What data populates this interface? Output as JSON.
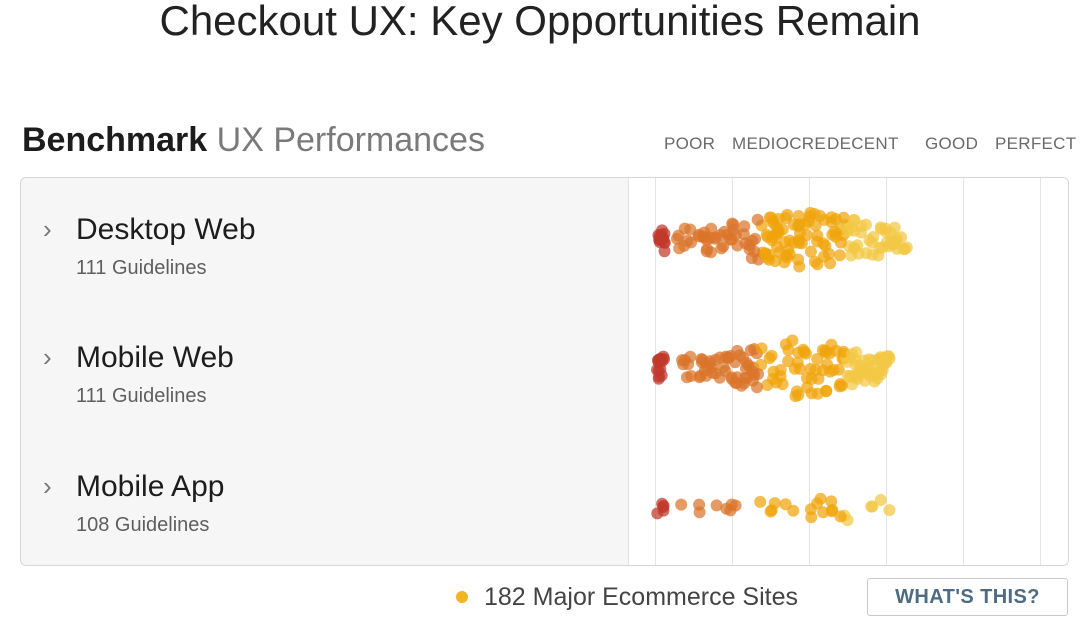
{
  "page_title": "Checkout UX: Key Opportunities Remain",
  "section": {
    "title_strong": "Benchmark",
    "title_light": "UX Performances"
  },
  "scale": [
    "POOR",
    "MEDIOCRE",
    "DECENT",
    "GOOD",
    "PERFECT"
  ],
  "rows": [
    {
      "title": "Desktop Web",
      "subtitle": "111 Guidelines",
      "chevron_icon": "chevron-right-icon",
      "expanded": false
    },
    {
      "title": "Mobile Web",
      "subtitle": "111 Guidelines",
      "chevron_icon": "chevron-right-icon",
      "expanded": false
    },
    {
      "title": "Mobile App",
      "subtitle": "108 Guidelines",
      "chevron_icon": "chevron-right-icon",
      "expanded": false
    }
  ],
  "legend": {
    "text": "182 Major Ecommerce Sites",
    "dot_color": "#f2b522"
  },
  "whats_this_label": "WHAT'S THIS?",
  "colors": {
    "poor": "#c0392b",
    "mediocre": "#d9742a",
    "decent": "#f0a30a",
    "good": "#f2c744"
  }
}
